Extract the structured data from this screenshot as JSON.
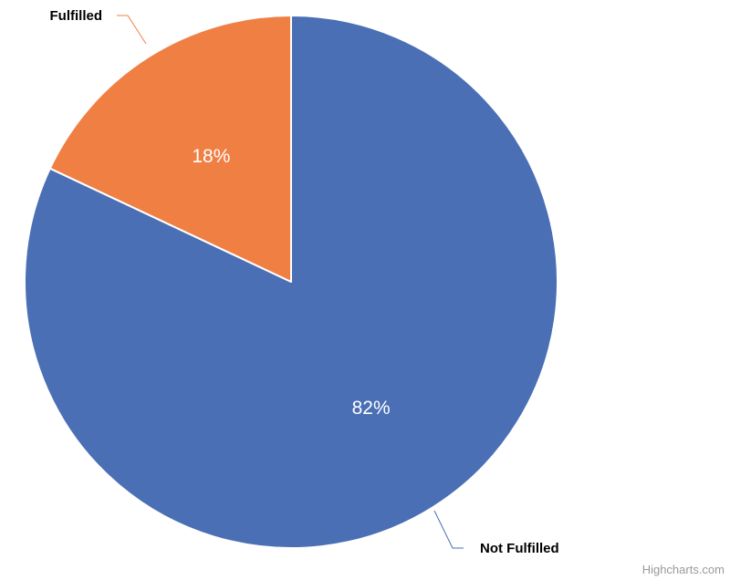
{
  "chart_data": {
    "type": "pie",
    "slices": [
      {
        "name": "Not Fulfilled",
        "value": 82,
        "label": "82%",
        "color": "#4a6fb5"
      },
      {
        "name": "Fulfilled",
        "value": 18,
        "label": "18%",
        "color": "#f07f44"
      }
    ],
    "connector_colors": {
      "Not Fulfilled": "#4a6fb5",
      "Fulfilled": "#f07f44"
    }
  },
  "credits": {
    "text": "Highcharts.com"
  }
}
